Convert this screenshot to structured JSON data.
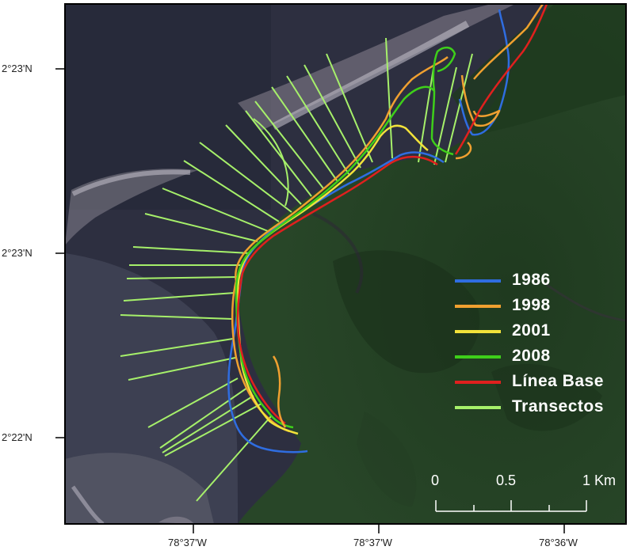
{
  "map": {
    "lat_ticks": [
      "2°23'N",
      "2°23'N",
      "2°22'N"
    ],
    "lon_ticks": [
      "78°37'W",
      "78°37'W",
      "78°36'W"
    ]
  },
  "legend": {
    "items": [
      {
        "label": "1986",
        "color": "#2f6de0"
      },
      {
        "label": "1998",
        "color": "#f0a030"
      },
      {
        "label": "2001",
        "color": "#f2e23a"
      },
      {
        "label": "2008",
        "color": "#3ecf1a"
      },
      {
        "label": "Línea Base",
        "color": "#e0201e"
      },
      {
        "label": "Transectos",
        "color": "#a6f06a"
      }
    ]
  },
  "scale_bar": {
    "labels": [
      "0",
      "0.5",
      "1 Km"
    ]
  }
}
